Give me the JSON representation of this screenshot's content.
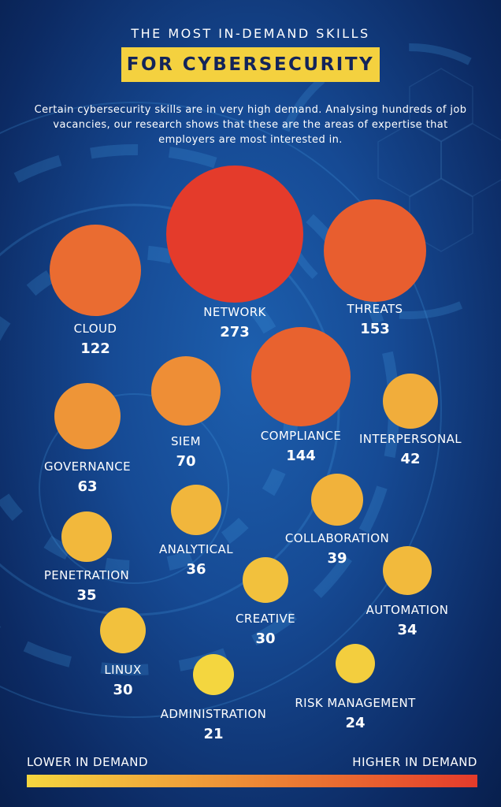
{
  "header": {
    "title": "THE MOST IN-DEMAND SKILLS",
    "banner": "FOR CYBERSECURITY",
    "intro": "Certain cybersecurity skills are in very high demand. Analysing hundreds of job vacancies, our research shows that these are the areas of expertise that employers are most interested in."
  },
  "legend": {
    "low_label": "LOWER IN DEMAND",
    "high_label": "HIGHER IN DEMAND",
    "low_color": "#f4d63f",
    "high_color": "#e43b2b"
  },
  "chart_data": {
    "type": "bubble",
    "title": "",
    "series": [
      {
        "name": "NETWORK",
        "value": 273
      },
      {
        "name": "THREATS",
        "value": 153
      },
      {
        "name": "COMPLIANCE",
        "value": 144
      },
      {
        "name": "CLOUD",
        "value": 122
      },
      {
        "name": "SIEM",
        "value": 70
      },
      {
        "name": "GOVERNANCE",
        "value": 63
      },
      {
        "name": "INTERPERSONAL",
        "value": 42
      },
      {
        "name": "COLLABORATION",
        "value": 39
      },
      {
        "name": "ANALYTICAL",
        "value": 36
      },
      {
        "name": "PENETRATION",
        "value": 35
      },
      {
        "name": "AUTOMATION",
        "value": 34
      },
      {
        "name": "CREATIVE",
        "value": 30
      },
      {
        "name": "LINUX",
        "value": 30
      },
      {
        "name": "RISK MANAGEMENT",
        "value": 24
      },
      {
        "name": "ADMINISTRATION",
        "value": 21
      }
    ],
    "color_scale": [
      "#f4d63f",
      "#f0a43a",
      "#ea6f31",
      "#e43b2b"
    ]
  }
}
